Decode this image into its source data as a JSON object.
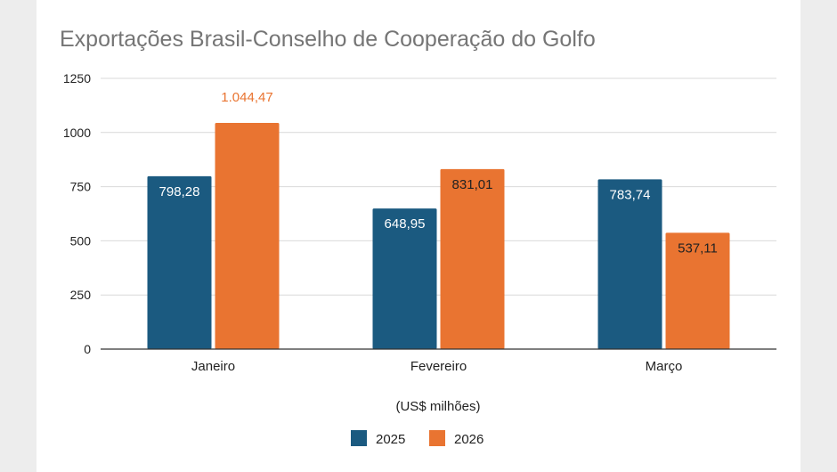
{
  "chart_data": {
    "type": "bar",
    "title": "Exportações Brasil-Conselho de Cooperação do Golfo",
    "xlabel": "(US$ milhões)",
    "ylabel": "",
    "ylim": [
      0,
      1250
    ],
    "yticks": [
      0,
      250,
      500,
      750,
      1000,
      1250
    ],
    "ytick_labels": [
      "0",
      "250",
      "500",
      "750",
      "1000",
      "1250"
    ],
    "grid": true,
    "legend_position": "bottom-center",
    "categories": [
      "Janeiro",
      "Fevereiro",
      "Março"
    ],
    "series": [
      {
        "name": "2025",
        "color": "#1b5a80",
        "values": [
          798.28,
          648.95,
          783.74
        ],
        "labels": [
          "798,28",
          "648,95",
          "783,74"
        ],
        "label_color": "#ffffff"
      },
      {
        "name": "2026",
        "color": "#e97431",
        "values": [
          1044.47,
          831.01,
          537.11
        ],
        "labels": [
          "1.044,47",
          "831,01",
          "537,11"
        ],
        "label_color": "#222222",
        "outside_label_color": "#e97431"
      }
    ]
  }
}
